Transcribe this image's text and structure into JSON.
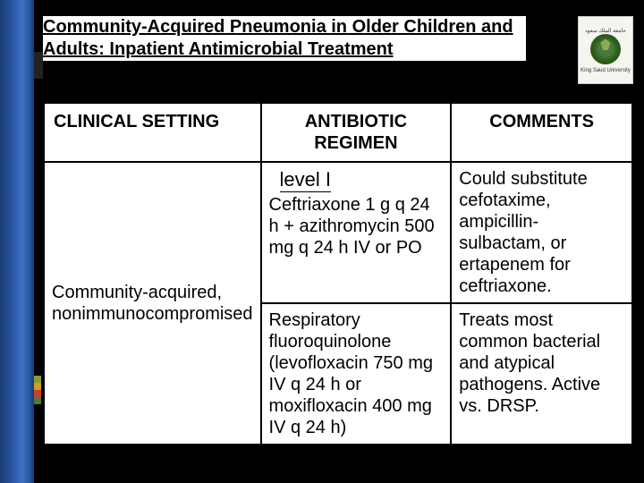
{
  "title": "Community-Acquired Pneumonia in Older Children and Adults: Inpatient Antimicrobial Treatment",
  "logo": {
    "line1": "King Saud University",
    "line2": "جامعة الملك سعود"
  },
  "colorBars": [
    "#8a9a3a",
    "#d4a018",
    "#c44030",
    "#4a7a3a"
  ],
  "table": {
    "headers": {
      "c1": "CLINICAL SETTING",
      "c2": "ANTIBIOTIC REGIMEN",
      "c3": "COMMENTS"
    },
    "level": "level I",
    "rows": [
      {
        "c1": "Community-acquired, nonimmunocompromised",
        "c2": "Ceftriaxone 1 g q 24 h + azithromycin 500 mg q 24 h IV or PO",
        "c3": "Could substitute cefotaxime, ampicillin-sulbactam, or ertapenem for ceftriaxone."
      },
      {
        "c1": "",
        "c2": "Respiratory fluoroquinolone (levofloxacin 750 mg IV q 24 h or moxifloxacin 400 mg IV q 24 h)",
        "c3": "Treats most common bacterial and atypical pathogens. Active vs. DRSP."
      }
    ]
  }
}
